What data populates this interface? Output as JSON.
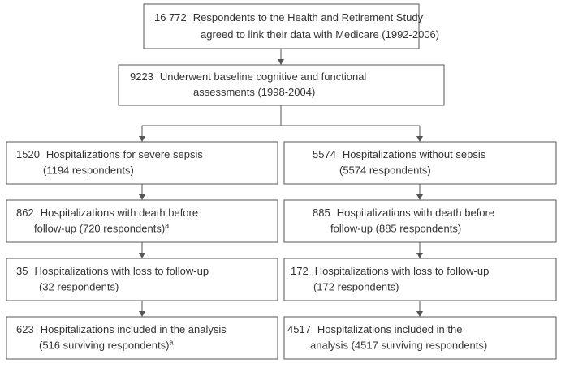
{
  "nodes": [
    {
      "count": "16 772",
      "lines": [
        "Respondents to the Health and Retirement Study",
        "agreed to link their data with Medicare (1992-2006)"
      ]
    },
    {
      "count": "9223",
      "lines": [
        "Underwent baseline cognitive and functional",
        "assessments (1998-2004)"
      ]
    }
  ],
  "columns": [
    [
      {
        "count": "1520",
        "lines": [
          "Hospitalizations for severe sepsis",
          "(1194 respondents)"
        ]
      },
      {
        "count": "862",
        "lines": [
          "Hospitalizations with death before",
          "follow-up  (720 respondents)"
        ],
        "note": "a"
      },
      {
        "count": "35",
        "lines": [
          "Hospitalizations with loss to follow-up",
          "(32 respondents)"
        ]
      },
      {
        "count": "623",
        "lines": [
          "Hospitalizations included in the analysis",
          "(516 surviving respondents)"
        ],
        "note": "a"
      }
    ],
    [
      {
        "count": "5574",
        "lines": [
          "Hospitalizations without sepsis",
          "(5574 respondents)"
        ]
      },
      {
        "count": "885",
        "lines": [
          "Hospitalizations with death before",
          "follow-up  (885 respondents)"
        ]
      },
      {
        "count": "172",
        "lines": [
          "Hospitalizations with loss to follow-up",
          "(172 respondents)"
        ]
      },
      {
        "count": "4517",
        "lines": [
          "Hospitalizations included in the",
          "analysis (4517 surviving respondents)"
        ]
      }
    ]
  ]
}
